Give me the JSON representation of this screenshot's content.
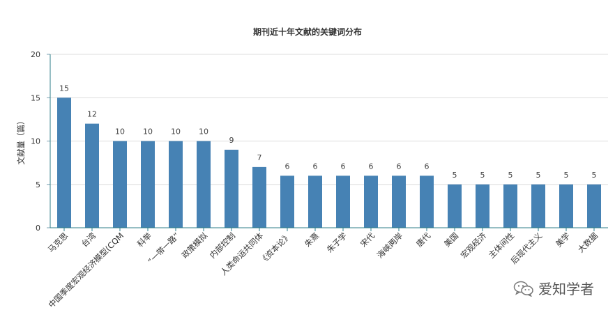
{
  "chart_data": {
    "type": "bar",
    "title": "期刊近十年文献的关键词分布",
    "ylabel": "文献量（篇）",
    "xlabel": "",
    "ylim": [
      0,
      20
    ],
    "yticks": [
      0,
      5,
      10,
      15,
      20
    ],
    "grid": true,
    "bar_color": "#4682B4",
    "categories": [
      "马克思",
      "台湾",
      "中国季度宏观经济模型(CQM",
      "科举",
      "“一带一路”",
      "政策模拟",
      "内部控制",
      "人类命运共同体",
      "《资本论》",
      "朱熹",
      "朱子学",
      "宋代",
      "海峡两岸",
      "唐代",
      "美国",
      "宏观经济",
      "主体间性",
      "后现代主义",
      "美学",
      "大数据"
    ],
    "values": [
      15,
      12,
      10,
      10,
      10,
      10,
      9,
      7,
      6,
      6,
      6,
      6,
      6,
      6,
      5,
      5,
      5,
      5,
      5,
      5
    ]
  },
  "watermark": {
    "text": "爱知学者",
    "icon": "wechat-icon"
  }
}
